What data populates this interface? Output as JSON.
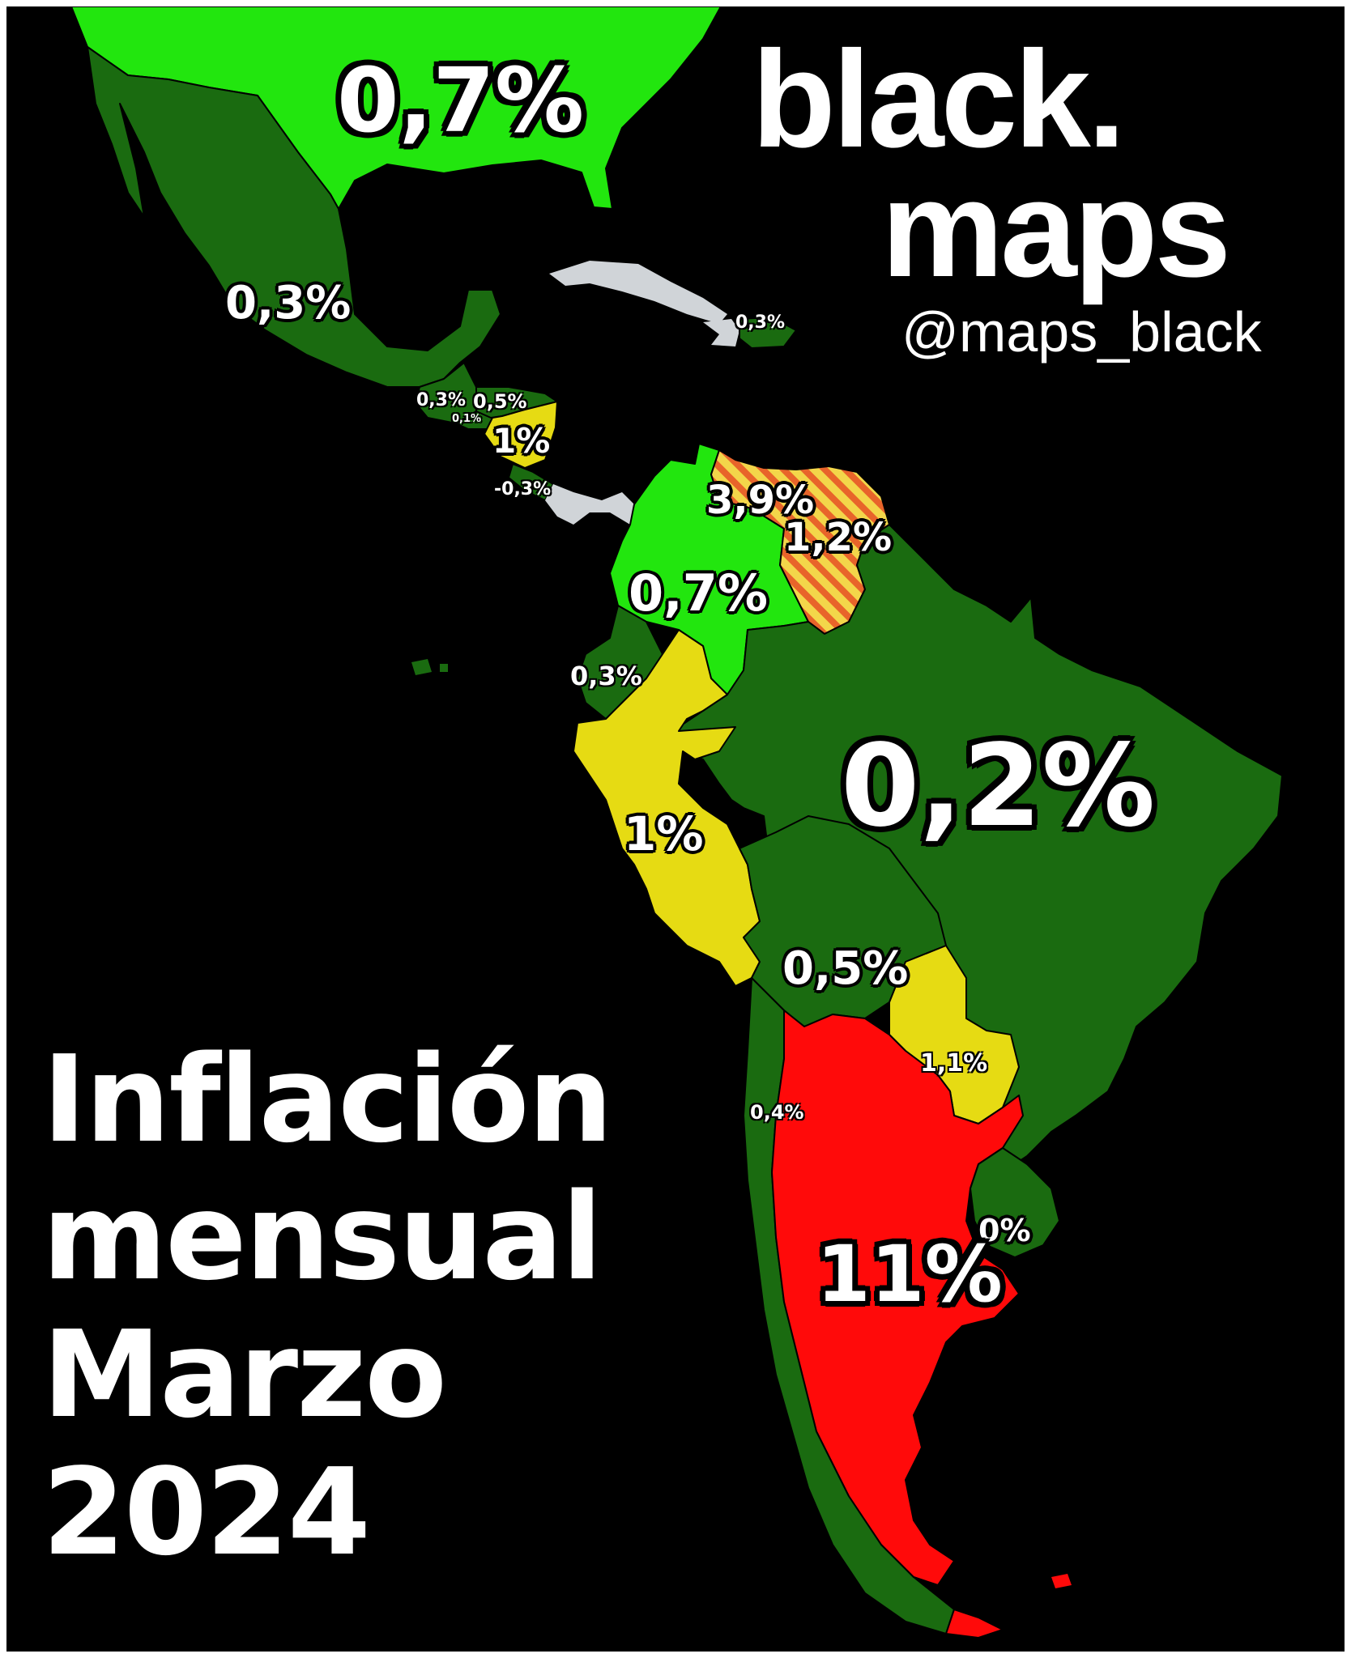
{
  "brand": {
    "line1": "black.",
    "line2": "maps",
    "handle": "@maps_black"
  },
  "title": {
    "line1": "Inflación",
    "line2": "mensual",
    "line3": "Marzo",
    "line4": "2024"
  },
  "labels": {
    "usa": "0,7%",
    "mexico": "0,3%",
    "dominican_republic": "0,3%",
    "guatemala": "0,3%",
    "honduras": "0,5%",
    "el_salvador": "0,1%",
    "nicaragua": "1%",
    "costa_rica": "-0,3%",
    "venezuela_a": "3,9%",
    "venezuela_b": "1,2%",
    "colombia": "0,7%",
    "ecuador": "0,3%",
    "brazil": "0,2%",
    "peru": "1%",
    "bolivia": "0,5%",
    "paraguay": "1,1%",
    "chile": "0,4%",
    "uruguay": "0%",
    "argentina": "11%"
  },
  "colors": {
    "background": "#000000",
    "dark_green": "#1a6b10",
    "light_green": "#22e60e",
    "yellow": "#e6db13",
    "orange": "#f28c1c",
    "red": "#ff0a0a",
    "no_data": "#d0d4d8"
  }
}
